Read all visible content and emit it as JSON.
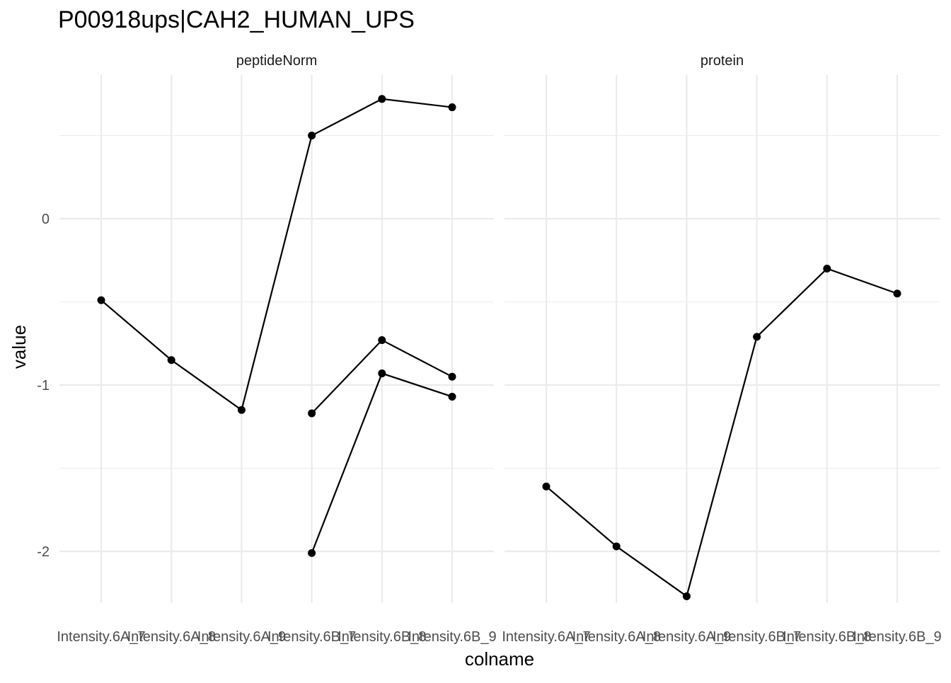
{
  "chart_data": {
    "type": "line",
    "title": "P00918ups|CAH2_HUMAN_UPS",
    "xlabel": "colname",
    "ylabel": "value",
    "categories": [
      "Intensity.6A_7",
      "Intensity.6A_8",
      "Intensity.6A_9",
      "Intensity.6B_7",
      "Intensity.6B_8",
      "Intensity.6B_9"
    ],
    "y_ticks": [
      0,
      -1,
      -2
    ],
    "y_tick_labels": [
      "0",
      "-1",
      "-2"
    ],
    "ylim": [
      -2.39,
      0.86
    ],
    "grid": true,
    "colors": {
      "line": "#000000",
      "grid": "#ebebeb"
    },
    "facets": [
      {
        "name": "peptideNorm",
        "series": [
          {
            "values": [
              -0.49,
              -0.85,
              -1.15,
              0.5,
              0.72,
              0.67
            ]
          },
          {
            "values": [
              null,
              null,
              null,
              -1.17,
              -0.73,
              -0.95
            ]
          },
          {
            "values": [
              null,
              null,
              null,
              -2.01,
              -0.93,
              -1.07
            ]
          }
        ]
      },
      {
        "name": "protein",
        "series": [
          {
            "values": [
              -1.61,
              -1.97,
              -2.27,
              -0.71,
              -0.3,
              -0.45
            ]
          }
        ]
      }
    ]
  }
}
